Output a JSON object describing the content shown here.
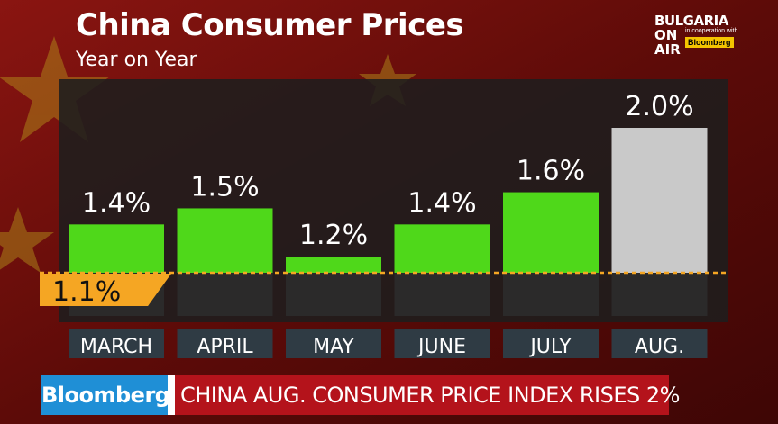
{
  "header": {
    "title": "China Consumer Prices",
    "subtitle": "Year on Year"
  },
  "logo": {
    "line1": "BULGARIA",
    "line2": "ON",
    "line3": "AIR",
    "cooperation": "in cooperation with",
    "partner": "Bloomberg"
  },
  "ticker": {
    "brand": "Bloomberg",
    "headline": "CHINA AUG. CONSUMER PRICE INDEX RISES 2%"
  },
  "colors": {
    "green_bar": "#4fd81a",
    "grey_bar": "#c9c9c9",
    "baseline": "#f5a623",
    "panel": "#1e1e1e",
    "label_bg": "#2f3b44"
  },
  "chart_data": {
    "type": "bar",
    "categories": [
      "MARCH",
      "APRIL",
      "MAY",
      "JUNE",
      "JULY",
      "AUG."
    ],
    "values": [
      1.4,
      1.5,
      1.2,
      1.4,
      1.6,
      2.0
    ],
    "value_labels": [
      "1.4%",
      "1.5%",
      "1.2%",
      "1.4%",
      "1.6%",
      "2.0%"
    ],
    "highlight_last": true,
    "reference_line": {
      "value": 1.1,
      "label": "1.1%"
    },
    "ylim": [
      1.1,
      2.0
    ],
    "grid": false,
    "legend": "none"
  }
}
